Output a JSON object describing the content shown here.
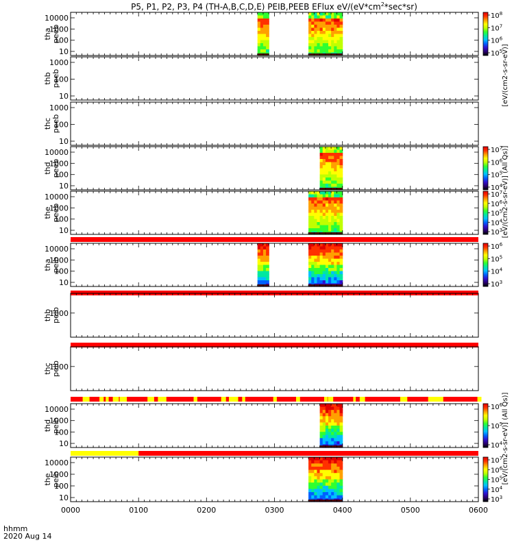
{
  "chart_data": {
    "type": "heatmap",
    "title": "P5, P1, P2, P3, P4 (TH-A,B,C,D,E) PEIB,PEEB EFlux eV/(eV*cm",
    "title_sup": "2",
    "title_tail": "*sec*sr)",
    "x_axis": {
      "ticks": [
        "0000",
        "0100",
        "0200",
        "0300",
        "0400",
        "0500",
        "0600"
      ],
      "label_line1": "hhmm",
      "label_line2": "2020 Aug 14"
    },
    "panels": [
      {
        "label1": "tha",
        "label2": "peeb",
        "yticks": [
          "10000",
          "1000",
          "100",
          "10"
        ],
        "data_blocks": [
          [
            "0245",
            "0255"
          ],
          [
            "0330",
            "0400"
          ]
        ],
        "colorbar": {
          "ticks_base": [
            "10",
            "10",
            "10",
            "10"
          ],
          "ticks_exp": [
            "8",
            "7",
            "6",
            "5"
          ]
        }
      },
      {
        "label1": "thb",
        "label2": "peeb",
        "yticks": [
          "1000",
          "100",
          "10"
        ],
        "data_blocks": []
      },
      {
        "label1": "thc",
        "label2": "peeb",
        "yticks": [
          "1000",
          "100",
          "10"
        ],
        "data_blocks": []
      },
      {
        "label1": "thd",
        "label2": "peeb",
        "yticks": [
          "10000",
          "1000",
          "100",
          "10"
        ],
        "data_blocks": [
          [
            "0340",
            "0400"
          ]
        ],
        "colorbar": {
          "ticks_base": [
            "10",
            "10",
            "10",
            "10"
          ],
          "ticks_exp": [
            "7",
            "6",
            "5",
            "4"
          ]
        }
      },
      {
        "label1": "the",
        "label2": "peeb",
        "yticks": [
          "10000",
          "1000",
          "100",
          "10"
        ],
        "data_blocks": [
          [
            "0330",
            "0400"
          ]
        ],
        "colorbar": {
          "ticks_base": [
            "10",
            "10",
            "10",
            "10",
            "10"
          ],
          "ticks_exp": [
            "7",
            "6",
            "5",
            "4",
            "3"
          ]
        }
      },
      {
        "label1": "tha",
        "label2": "peib",
        "yticks": [
          "10000",
          "1000",
          "100",
          "10"
        ],
        "data_blocks": [
          [
            "0245",
            "0255"
          ],
          [
            "0330",
            "0400"
          ]
        ],
        "colorbar": {
          "ticks_base": [
            "10",
            "10",
            "10",
            "10"
          ],
          "ticks_exp": [
            "6",
            "5",
            "4",
            "3"
          ]
        }
      },
      {
        "label1": "thb",
        "label2": "peib",
        "yticks": [
          "1000"
        ],
        "data_blocks": []
      },
      {
        "label1": "thc",
        "label2": "peib",
        "yticks": [
          "1000"
        ],
        "data_blocks": []
      },
      {
        "label1": "thd",
        "label2": "peib",
        "yticks": [
          "10000",
          "1000",
          "100",
          "10"
        ],
        "data_blocks": [
          [
            "0340",
            "0400"
          ]
        ],
        "colorbar": {
          "ticks_base": [
            "10",
            "10",
            "10"
          ],
          "ticks_exp": [
            "6",
            "5",
            "4"
          ]
        }
      },
      {
        "label1": "the",
        "label2": "peib",
        "yticks": [
          "10000",
          "1000",
          "100",
          "10"
        ],
        "data_blocks": [
          [
            "0330",
            "0400"
          ]
        ],
        "colorbar": {
          "ticks_base": [
            "10",
            "10",
            "10",
            "10",
            "10"
          ],
          "ticks_exp": [
            "7",
            "6",
            "5",
            "4",
            "3"
          ]
        }
      }
    ],
    "colorbar_labels": [
      {
        "text": "[eV/(cm2-s-sr-eV)]"
      },
      {
        "text": "[eV/(cm2-s-sr-eV)] (All Qs)]"
      },
      {
        "text": "[eV/(cm2-s-sr-eV)] (All Qs)]"
      }
    ],
    "colorscale": [
      "#000000",
      "#2a0070",
      "#3010d0",
      "#0060ff",
      "#00c0ff",
      "#00e8a0",
      "#30ff30",
      "#c0ff00",
      "#ffff00",
      "#ffa000",
      "#ff3000",
      "#e00000"
    ]
  }
}
